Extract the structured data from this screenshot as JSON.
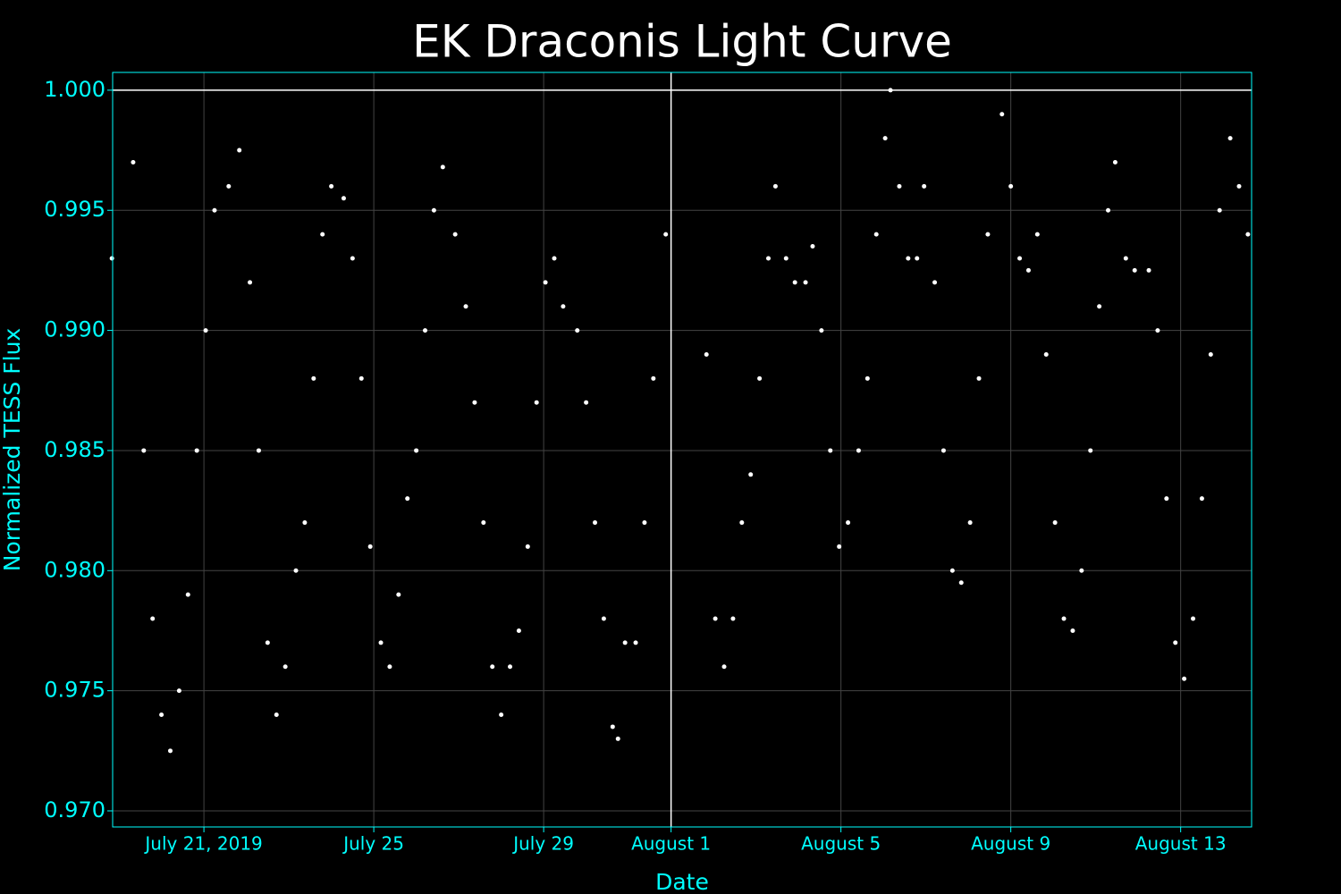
{
  "chart_data": {
    "type": "scatter",
    "title": "EK Draconis Light Curve",
    "x_label": "Date",
    "y_label": "Normalized TESS Flux",
    "color": "#ffffff",
    "axis_color": "#00ffff",
    "grid": true,
    "hline": 1.0,
    "vline": "2019-08-01T00:00",
    "xlim": [
      "2019-07-18T20:25",
      "2019-08-14T16:05"
    ],
    "ylim": [
      0.96933,
      1.00074
    ],
    "xticks": [
      {
        "value": "2019-07-21T00:00",
        "label": "July 21, 2019"
      },
      {
        "value": "2019-07-25T00:00",
        "label": "July 25"
      },
      {
        "value": "2019-07-29T00:00",
        "label": "July 29"
      },
      {
        "value": "2019-08-01T00:00",
        "label": "August 1"
      },
      {
        "value": "2019-08-05T00:00",
        "label": "August 5"
      },
      {
        "value": "2019-08-09T00:00",
        "label": "August 9"
      },
      {
        "value": "2019-08-13T00:00",
        "label": "August 13"
      }
    ],
    "yticks": [
      {
        "value": 0.97,
        "label": "0.970"
      },
      0.975,
      {
        "value": 0.98,
        "label": "0.980"
      },
      0.985,
      {
        "value": 0.99,
        "label": "0.990"
      },
      0.995,
      {
        "value": 1.0,
        "label": "1.000"
      }
    ],
    "x": [
      "2019-07-18T20:00",
      "2019-07-19T08:00",
      "2019-07-19T14:00",
      "2019-07-19T19:00",
      "2019-07-20T00:00",
      "2019-07-20T05:00",
      "2019-07-20T10:00",
      "2019-07-20T15:00",
      "2019-07-20T20:00",
      "2019-07-21T01:00",
      "2019-07-21T06:00",
      "2019-07-21T14:00",
      "2019-07-21T20:00",
      "2019-07-22T02:00",
      "2019-07-22T07:00",
      "2019-07-22T12:00",
      "2019-07-22T17:00",
      "2019-07-22T22:00",
      "2019-07-23T04:00",
      "2019-07-23T09:00",
      "2019-07-23T14:00",
      "2019-07-23T19:00",
      "2019-07-24T00:00",
      "2019-07-24T07:00",
      "2019-07-24T12:00",
      "2019-07-24T17:00",
      "2019-07-24T22:00",
      "2019-07-25T04:00",
      "2019-07-25T09:00",
      "2019-07-25T14:00",
      "2019-07-25T19:00",
      "2019-07-26T00:00",
      "2019-07-26T05:00",
      "2019-07-26T10:00",
      "2019-07-26T15:00",
      "2019-07-26T22:00",
      "2019-07-27T04:00",
      "2019-07-27T09:00",
      "2019-07-27T14:00",
      "2019-07-27T19:00",
      "2019-07-28T00:00",
      "2019-07-28T05:00",
      "2019-07-28T10:00",
      "2019-07-28T15:00",
      "2019-07-28T20:00",
      "2019-07-29T01:00",
      "2019-07-29T06:00",
      "2019-07-29T11:00",
      "2019-07-29T19:00",
      "2019-07-30T00:00",
      "2019-07-30T05:00",
      "2019-07-30T10:00",
      "2019-07-30T15:00",
      "2019-07-30T18:00",
      "2019-07-30T22:00",
      "2019-07-31T04:00",
      "2019-07-31T09:00",
      "2019-07-31T14:00",
      "2019-07-31T21:00",
      "2019-08-01T20:00",
      "2019-08-02T01:00",
      "2019-08-02T06:00",
      "2019-08-02T11:00",
      "2019-08-02T16:00",
      "2019-08-02T21:00",
      "2019-08-03T02:00",
      "2019-08-03T07:00",
      "2019-08-03T11:00",
      "2019-08-03T17:00",
      "2019-08-03T22:00",
      "2019-08-04T04:00",
      "2019-08-04T08:00",
      "2019-08-04T13:00",
      "2019-08-04T18:00",
      "2019-08-04T23:00",
      "2019-08-05T04:00",
      "2019-08-05T10:00",
      "2019-08-05T15:00",
      "2019-08-05T20:00",
      "2019-08-06T01:00",
      "2019-08-06T04:00",
      "2019-08-06T09:00",
      "2019-08-06T14:00",
      "2019-08-06T19:00",
      "2019-08-06T23:00",
      "2019-08-07T05:00",
      "2019-08-07T10:00",
      "2019-08-07T15:00",
      "2019-08-07T20:00",
      "2019-08-08T01:00",
      "2019-08-08T06:00",
      "2019-08-08T11:00",
      "2019-08-08T19:00",
      "2019-08-09T00:00",
      "2019-08-09T05:00",
      "2019-08-09T10:00",
      "2019-08-09T15:00",
      "2019-08-09T20:00",
      "2019-08-10T01:00",
      "2019-08-10T06:00",
      "2019-08-10T11:00",
      "2019-08-10T16:00",
      "2019-08-10T21:00",
      "2019-08-11T02:00",
      "2019-08-11T07:00",
      "2019-08-11T11:00",
      "2019-08-11T17:00",
      "2019-08-11T22:00",
      "2019-08-12T06:00",
      "2019-08-12T11:00",
      "2019-08-12T16:00",
      "2019-08-12T21:00",
      "2019-08-13T02:00",
      "2019-08-13T07:00",
      "2019-08-13T12:00",
      "2019-08-13T17:00",
      "2019-08-13T22:00",
      "2019-08-14T04:00",
      "2019-08-14T09:00",
      "2019-08-14T14:00"
    ],
    "values": [
      0.993,
      0.997,
      0.985,
      0.978,
      0.974,
      0.9725,
      0.975,
      0.979,
      0.985,
      0.99,
      0.995,
      0.996,
      0.9975,
      0.992,
      0.985,
      0.977,
      0.974,
      0.976,
      0.98,
      0.982,
      0.988,
      0.994,
      0.996,
      0.9955,
      0.993,
      0.988,
      0.981,
      0.977,
      0.976,
      0.979,
      0.983,
      0.985,
      0.99,
      0.995,
      0.9968,
      0.994,
      0.991,
      0.987,
      0.982,
      0.976,
      0.974,
      0.976,
      0.9775,
      0.981,
      0.987,
      0.992,
      0.993,
      0.991,
      0.99,
      0.987,
      0.982,
      0.978,
      0.9735,
      0.973,
      0.977,
      0.977,
      0.982,
      0.988,
      0.994,
      0.989,
      0.978,
      0.976,
      0.978,
      0.982,
      0.984,
      0.988,
      0.993,
      0.996,
      0.993,
      0.992,
      0.992,
      0.9935,
      0.99,
      0.985,
      0.981,
      0.982,
      0.985,
      0.988,
      0.994,
      0.998,
      1.0,
      0.996,
      0.993,
      0.993,
      0.996,
      0.992,
      0.985,
      0.98,
      0.9795,
      0.982,
      0.988,
      0.994,
      0.999,
      0.996,
      0.993,
      0.9925,
      0.994,
      0.989,
      0.982,
      0.978,
      0.9775,
      0.98,
      0.985,
      0.991,
      0.995,
      0.997,
      0.993,
      0.9925,
      0.9925,
      0.99,
      0.983,
      0.977,
      0.9755,
      0.978,
      0.983,
      0.989,
      0.995,
      0.998,
      0.996,
      0.994
    ]
  }
}
